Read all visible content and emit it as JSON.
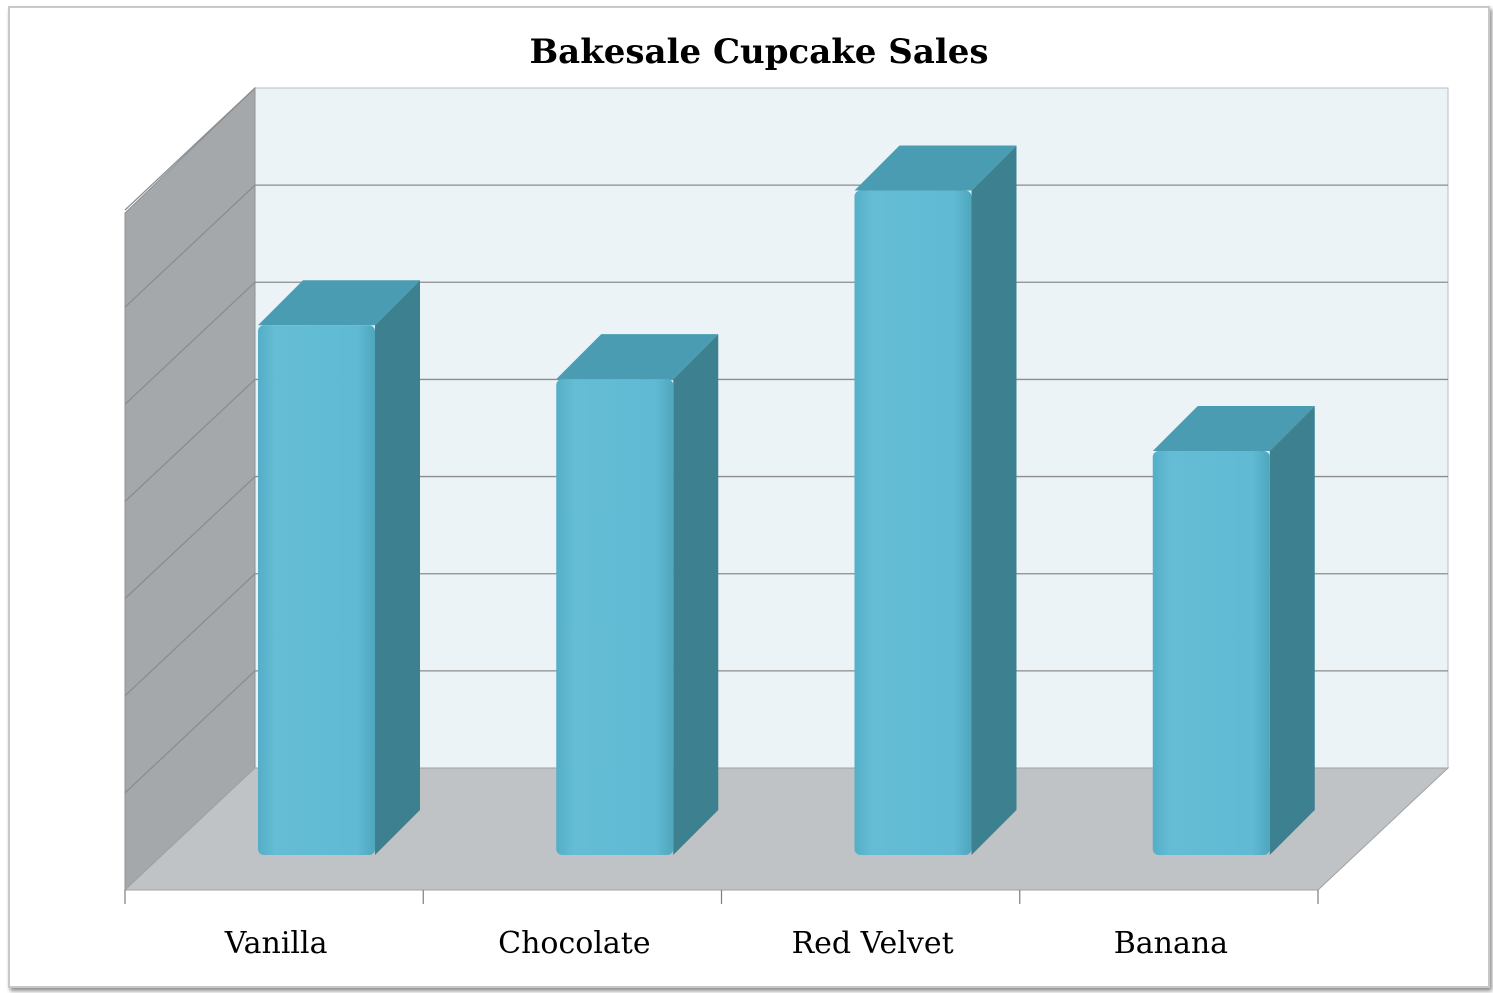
{
  "chart_data": {
    "type": "bar",
    "style": "3d-column",
    "title": "Bakesale Cupcake Sales",
    "xlabel": "",
    "ylabel": "",
    "categories": [
      "Vanilla",
      "Chocolate",
      "Red Velvet",
      "Banana"
    ],
    "values": [
      5,
      4.4,
      6.5,
      3.6
    ],
    "ylim": [
      0,
      7
    ],
    "grid": true,
    "legend": "none",
    "y_tick_labels_shown": false
  },
  "colors": {
    "bar_front": "#5fb9d2",
    "bar_top": "#4a9cb3",
    "bar_side": "#3d808f",
    "back_wall": "#ebf3f7",
    "side_wall": "#a5a8ab",
    "floor": "#bfc3c6",
    "gridline": "#8c8c8c"
  }
}
